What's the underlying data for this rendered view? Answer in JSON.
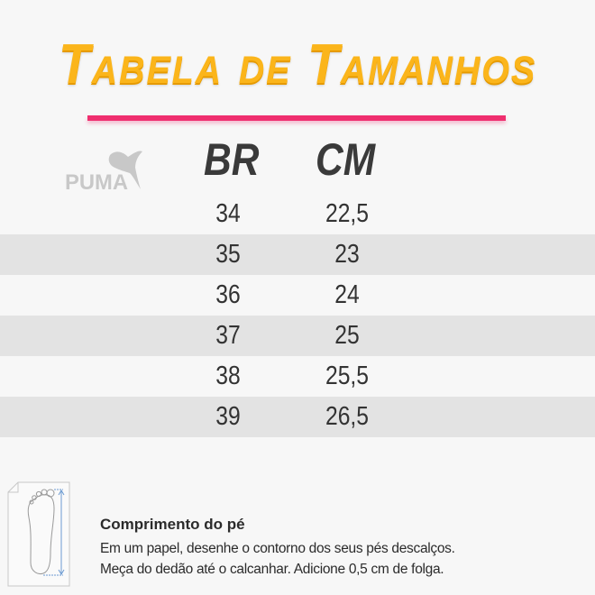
{
  "title": "Tabela de Tamanhos",
  "accent_colors": {
    "title": "#fbb51b",
    "divider": "#ef2f6f"
  },
  "brand_logo": "PUMA",
  "table": {
    "headers": [
      "BR",
      "CM"
    ],
    "rows": [
      [
        "34",
        "22,5"
      ],
      [
        "35",
        "23"
      ],
      [
        "36",
        "24"
      ],
      [
        "37",
        "25"
      ],
      [
        "38",
        "25,5"
      ],
      [
        "39",
        "26,5"
      ]
    ]
  },
  "footer": {
    "icon": "foot-measure-icon",
    "heading": "Comprimento do pé",
    "lines": [
      "Em um papel, desenhe o contorno dos seus pés descalços.",
      "Meça do dedão até o calcanhar. Adicione 0,5 cm de folga."
    ]
  }
}
